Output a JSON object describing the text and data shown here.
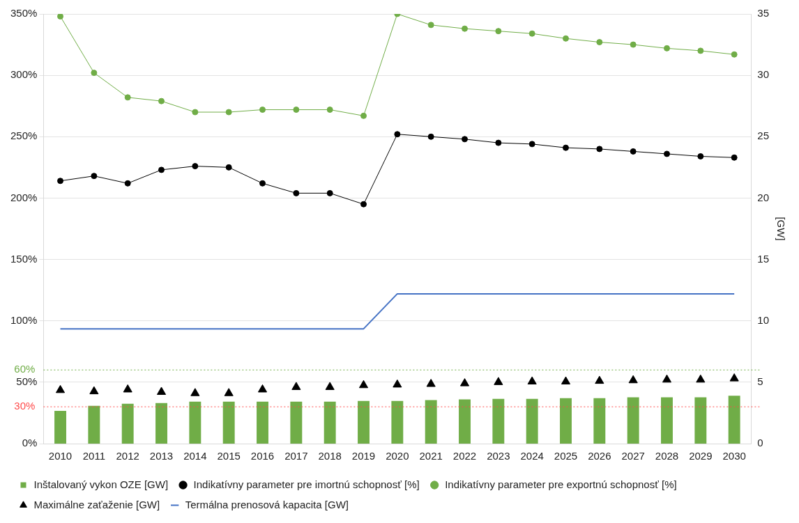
{
  "chart_data": {
    "type": "bar",
    "categories": [
      "2010",
      "2011",
      "2012",
      "2013",
      "2014",
      "2015",
      "2016",
      "2017",
      "2018",
      "2019",
      "2020",
      "2021",
      "2022",
      "2023",
      "2024",
      "2025",
      "2026",
      "2027",
      "2028",
      "2029",
      "2030"
    ],
    "series": [
      {
        "name": "Inštalovaný vykon OZE [GW]",
        "axis": "y2",
        "color": "#70ad47",
        "values": [
          2.67,
          3.08,
          3.25,
          3.3,
          3.42,
          3.42,
          3.42,
          3.42,
          3.42,
          3.48,
          3.48,
          3.54,
          3.6,
          3.65,
          3.65,
          3.7,
          3.7,
          3.77,
          3.77,
          3.77,
          3.9
        ]
      },
      {
        "name": "Indikatívny parameter pre imortnú schopnosť [%]",
        "type": "line",
        "color": "#000000",
        "marker": "circle",
        "values": [
          214,
          218,
          212,
          223,
          226,
          225,
          212,
          204,
          204,
          195,
          252,
          250,
          248,
          245,
          244,
          241,
          240,
          238,
          236,
          234,
          233
        ]
      },
      {
        "name": "Indikatívny parameter pre exportnú schopnosť [%]",
        "type": "line",
        "color": "#70ad47",
        "marker": "circle",
        "values": [
          348,
          302,
          282,
          279,
          270,
          270,
          272,
          272,
          272,
          267,
          350,
          341,
          338,
          336,
          334,
          330,
          327,
          325,
          322,
          320,
          317
        ]
      },
      {
        "name": "Maximálne zaťaženie [GW]",
        "type": "scatter",
        "axis": "y2",
        "color": "#000000",
        "marker": "triangle",
        "values": [
          4.35,
          4.25,
          4.4,
          4.2,
          4.1,
          4.1,
          4.4,
          4.6,
          4.6,
          4.75,
          4.8,
          4.85,
          4.9,
          5.0,
          5.05,
          5.05,
          5.1,
          5.15,
          5.2,
          5.2,
          5.3
        ]
      },
      {
        "name": "Termálna prenosová kapacita [GW]",
        "type": "line",
        "axis": "y2",
        "color": "#4472c4",
        "marker": "none",
        "values": [
          9.35,
          9.35,
          9.35,
          9.35,
          9.35,
          9.35,
          9.35,
          9.35,
          9.35,
          9.35,
          12.2,
          12.2,
          12.2,
          12.2,
          12.2,
          12.2,
          12.2,
          12.2,
          12.2,
          12.2,
          12.2
        ]
      }
    ],
    "ylim": [
      0,
      350
    ],
    "yticks": [
      {
        "value": 0,
        "label": "0%"
      },
      {
        "value": 50,
        "label": "50%"
      },
      {
        "value": 100,
        "label": "100%"
      },
      {
        "value": 150,
        "label": "150%"
      },
      {
        "value": 200,
        "label": "200%"
      },
      {
        "value": 250,
        "label": "250%"
      },
      {
        "value": 300,
        "label": "300%"
      },
      {
        "value": 350,
        "label": "350%"
      }
    ],
    "y2lim": [
      0,
      35
    ],
    "y2ticks": [
      0,
      5,
      10,
      15,
      20,
      25,
      30,
      35
    ],
    "y2label": "[GW]",
    "ref_lines": [
      {
        "axis": "y",
        "value": 30,
        "label": "30%",
        "color": "#ff4b4b",
        "line_style": "dotted"
      },
      {
        "axis": "y",
        "value": 60,
        "label": "60%",
        "color": "#70ad47",
        "line_style": "dotted"
      }
    ],
    "grid": "y",
    "legend": "bottom"
  }
}
